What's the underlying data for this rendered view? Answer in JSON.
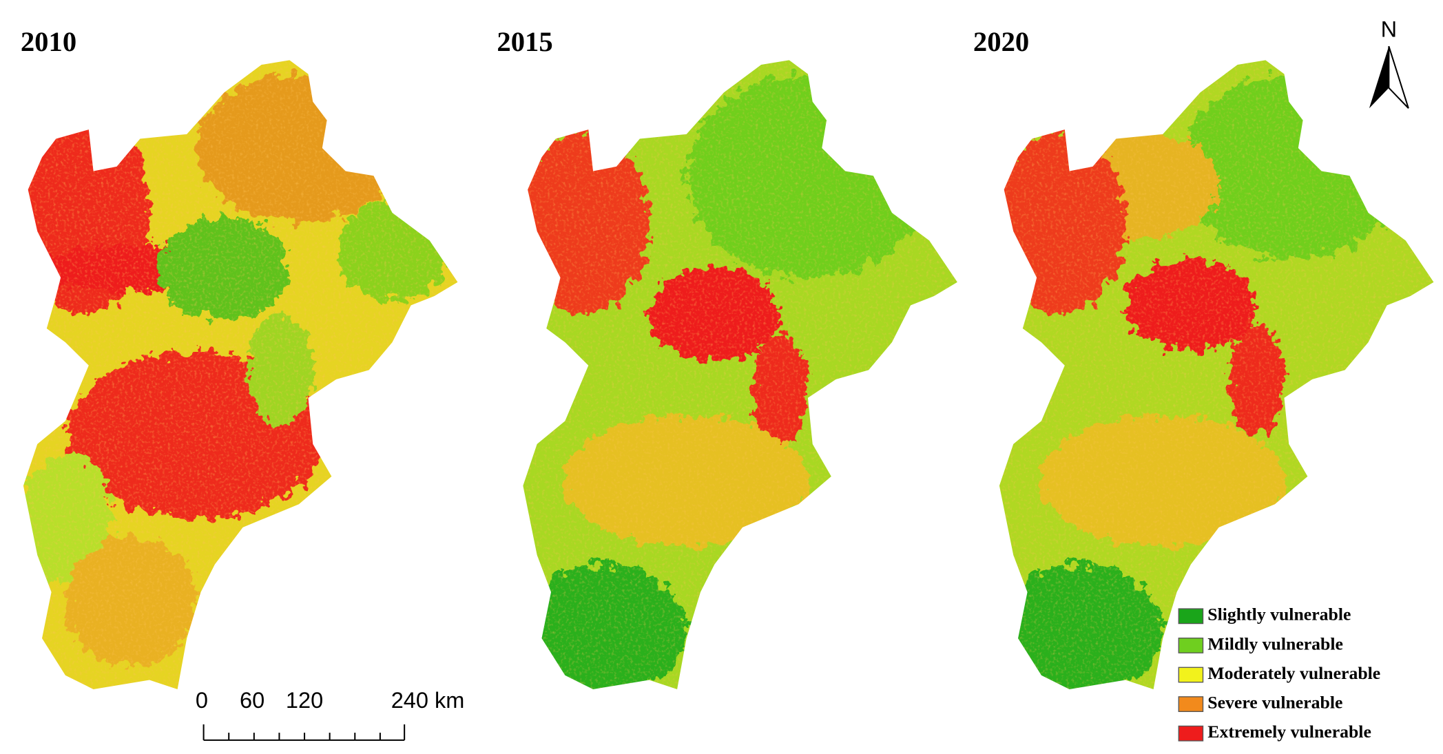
{
  "panels": [
    {
      "year": "2010"
    },
    {
      "year": "2015"
    },
    {
      "year": "2020"
    }
  ],
  "north": "N",
  "scale_bar": {
    "labels": [
      "0",
      "60",
      "120",
      "240 km"
    ]
  },
  "legend": {
    "items": [
      {
        "label": "Slightly vulnerable",
        "color": "#1aa51a"
      },
      {
        "label": "Mildly vulnerable",
        "color": "#6fcf1f"
      },
      {
        "label": "Moderately vulnerable",
        "color": "#f2f21c"
      },
      {
        "label": "Severe vulnerable",
        "color": "#f28a1c"
      },
      {
        "label": "Extremely vulnerable",
        "color": "#ee1c1c"
      }
    ]
  }
}
